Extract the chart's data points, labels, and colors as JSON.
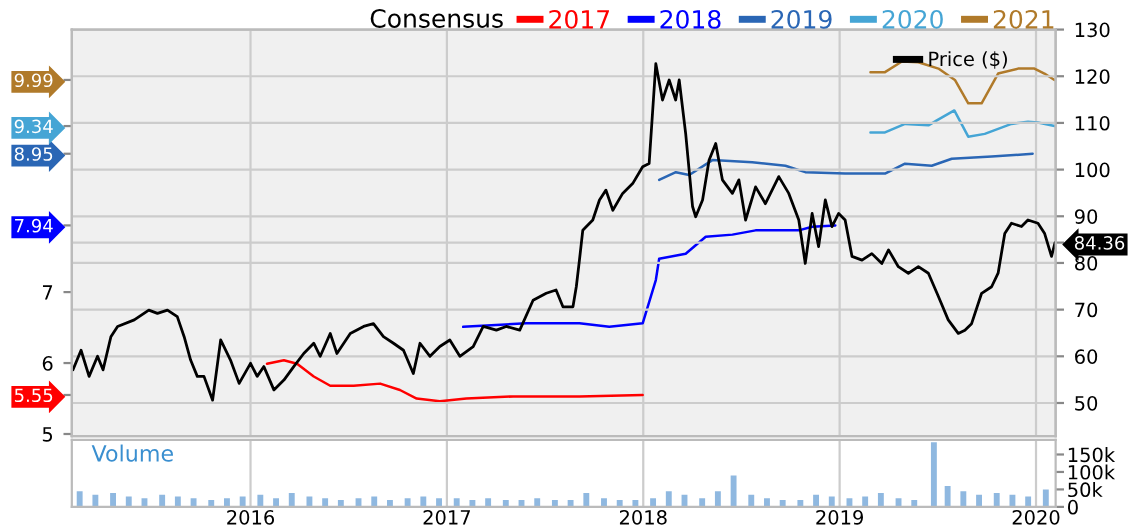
{
  "chart_data": [
    {
      "type": "line",
      "legend_title": "Consensus",
      "legend": "top",
      "grid": true,
      "tick_labels": "y",
      "xlim": [
        2015.09,
        2020.1
      ],
      "xticks": [
        2016,
        2017,
        2018,
        2019,
        2020
      ],
      "ylim": [
        4.97,
        10.7
      ],
      "yticks": [
        5,
        6,
        7,
        {
          "value": 5.55,
          "label": "5.55"
        },
        {
          "value": 7.94,
          "label": "7.94"
        },
        {
          "value": 8.95,
          "label": "8.95"
        },
        {
          "value": 9.34,
          "label": "9.34"
        },
        {
          "value": 9.99,
          "label": "9.99"
        }
      ],
      "y2lim": [
        42.9,
        130
      ],
      "y2ticks": [
        50,
        60,
        70,
        80,
        90,
        100,
        110,
        120,
        130,
        {
          "value": 84.36,
          "label": "84.36"
        }
      ],
      "series": [
        {
          "name": "2017",
          "color": "#ff0000",
          "x": [
            2016.084,
            2016.17,
            2016.237,
            2016.322,
            2016.406,
            2016.525,
            2016.66,
            2016.761,
            2016.846,
            2016.964,
            2017.099,
            2017.337,
            2017.675,
            2017.997
          ],
          "values": [
            5.99,
            6.04,
            5.99,
            5.81,
            5.68,
            5.68,
            5.71,
            5.62,
            5.5,
            5.46,
            5.5,
            5.53,
            5.53,
            5.55
          ]
        },
        {
          "name": "2018",
          "color": "#0000ff",
          "x": [
            2017.083,
            2017.404,
            2017.675,
            2017.827,
            2017.997,
            2018.064,
            2018.081,
            2018.216,
            2018.318,
            2018.454,
            2018.572,
            2018.792,
            2018.86,
            2018.978
          ],
          "values": [
            6.51,
            6.56,
            6.56,
            6.51,
            6.56,
            7.17,
            7.47,
            7.54,
            7.78,
            7.81,
            7.87,
            7.87,
            7.92,
            7.94
          ]
        },
        {
          "name": "2019",
          "color": "#2a66b5",
          "x": [
            2018.081,
            2018.166,
            2018.234,
            2018.352,
            2018.555,
            2018.724,
            2018.825,
            2019.028,
            2019.231,
            2019.333,
            2019.469,
            2019.571,
            2019.774,
            2019.983
          ],
          "values": [
            8.58,
            8.69,
            8.65,
            8.86,
            8.83,
            8.78,
            8.69,
            8.67,
            8.67,
            8.81,
            8.78,
            8.88,
            8.91,
            8.95
          ]
        },
        {
          "name": "2020",
          "color": "#45a5d5",
          "x": [
            2019.157,
            2019.231,
            2019.333,
            2019.452,
            2019.495,
            2019.584,
            2019.655,
            2019.739,
            2019.875,
            2019.959,
            2020.01,
            2020.094
          ],
          "values": [
            9.25,
            9.25,
            9.37,
            9.35,
            9.42,
            9.56,
            9.19,
            9.23,
            9.37,
            9.4,
            9.39,
            9.34
          ]
        },
        {
          "name": "2021",
          "color": "#b07a2a",
          "x": [
            2019.157,
            2019.231,
            2019.317,
            2019.401,
            2019.503,
            2019.587,
            2019.655,
            2019.723,
            2019.807,
            2019.909,
            2019.992,
            2020.043,
            2020.094
          ],
          "values": [
            10.1,
            10.1,
            10.25,
            10.24,
            10.15,
            9.99,
            9.66,
            9.66,
            10.08,
            10.15,
            10.15,
            10.08,
            9.99
          ]
        },
        {
          "name": "Price ($)",
          "color": "#000000",
          "axis": "y2",
          "x": [
            2015.096,
            2015.137,
            2015.178,
            2015.221,
            2015.249,
            2015.289,
            2015.323,
            2015.408,
            2015.482,
            2015.526,
            2015.577,
            2015.627,
            2015.662,
            2015.695,
            2015.729,
            2015.763,
            2015.807,
            2015.848,
            2015.898,
            2015.942,
            2016.0,
            2016.034,
            2016.068,
            2016.119,
            2016.17,
            2016.22,
            2016.271,
            2016.322,
            2016.355,
            2016.406,
            2016.44,
            2016.508,
            2016.576,
            2016.626,
            2016.677,
            2016.728,
            2016.779,
            2016.829,
            2016.863,
            2016.914,
            2016.964,
            2017.015,
            2017.066,
            2017.134,
            2017.185,
            2017.252,
            2017.302,
            2017.371,
            2017.439,
            2017.506,
            2017.556,
            2017.591,
            2017.642,
            2017.659,
            2017.675,
            2017.692,
            2017.743,
            2017.777,
            2017.81,
            2017.845,
            2017.895,
            2017.946,
            2017.997,
            2018.03,
            2018.064,
            2018.098,
            2018.132,
            2018.165,
            2018.183,
            2018.216,
            2018.251,
            2018.267,
            2018.302,
            2018.335,
            2018.369,
            2018.403,
            2018.454,
            2018.487,
            2018.521,
            2018.572,
            2018.622,
            2018.69,
            2018.741,
            2018.792,
            2018.825,
            2018.86,
            2018.893,
            2018.927,
            2018.961,
            2018.995,
            2019.028,
            2019.063,
            2019.114,
            2019.164,
            2019.215,
            2019.249,
            2019.299,
            2019.35,
            2019.401,
            2019.452,
            2019.503,
            2019.553,
            2019.604,
            2019.638,
            2019.672,
            2019.723,
            2019.774,
            2019.807,
            2019.841,
            2019.875,
            2019.926,
            2019.959,
            2020.01,
            2020.044,
            2020.079,
            2020.097
          ],
          "values": [
            57.1,
            61.3,
            55.7,
            60.0,
            57.1,
            64.2,
            66.4,
            67.8,
            69.9,
            69.2,
            69.9,
            68.5,
            64.2,
            59.2,
            55.7,
            55.7,
            50.6,
            63.5,
            59.2,
            54.2,
            58.5,
            55.7,
            57.8,
            52.8,
            54.9,
            57.8,
            60.6,
            62.8,
            60.0,
            64.9,
            60.6,
            64.9,
            66.4,
            67.0,
            64.2,
            62.8,
            61.3,
            56.3,
            62.8,
            60.0,
            62.1,
            63.5,
            60.0,
            62.1,
            66.4,
            65.6,
            66.4,
            65.6,
            72.0,
            73.5,
            74.2,
            70.6,
            70.6,
            74.9,
            80.6,
            87.0,
            89.2,
            93.5,
            95.6,
            91.3,
            94.9,
            97.0,
            100.6,
            101.3,
            122.7,
            114.9,
            119.2,
            114.9,
            119.2,
            107.7,
            92.1,
            89.9,
            93.5,
            102.0,
            105.6,
            97.8,
            94.9,
            97.8,
            89.2,
            96.3,
            92.7,
            98.5,
            94.9,
            89.2,
            79.9,
            90.6,
            83.5,
            93.5,
            87.8,
            90.6,
            89.2,
            81.4,
            80.6,
            82.0,
            79.9,
            82.8,
            79.2,
            77.8,
            79.2,
            77.8,
            72.8,
            67.8,
            64.9,
            65.6,
            67.0,
            73.5,
            74.9,
            77.8,
            86.3,
            88.5,
            87.8,
            89.2,
            88.5,
            86.3,
            81.4,
            84.36
          ]
        }
      ]
    },
    {
      "type": "bar",
      "title": "Volume",
      "color": "#8fb8e0",
      "grid": "x",
      "xlim": [
        2015.09,
        2020.1
      ],
      "xticks": [
        2016,
        2017,
        2018,
        2019,
        2020
      ],
      "ylim": [
        0,
        192000
      ],
      "yticks": [
        {
          "value": 0,
          "label": "0"
        },
        {
          "value": 50000,
          "label": "50k"
        },
        {
          "value": 100000,
          "label": "100k"
        },
        {
          "value": 150000,
          "label": "150k"
        }
      ],
      "x": [
        2015.13,
        2015.21,
        2015.3,
        2015.38,
        2015.46,
        2015.55,
        2015.63,
        2015.71,
        2015.8,
        2015.88,
        2015.96,
        2016.05,
        2016.13,
        2016.21,
        2016.3,
        2016.38,
        2016.46,
        2016.55,
        2016.63,
        2016.71,
        2016.8,
        2016.88,
        2016.96,
        2017.05,
        2017.13,
        2017.21,
        2017.3,
        2017.38,
        2017.46,
        2017.55,
        2017.63,
        2017.71,
        2017.8,
        2017.88,
        2017.96,
        2018.05,
        2018.13,
        2018.21,
        2018.3,
        2018.38,
        2018.46,
        2018.55,
        2018.63,
        2018.71,
        2018.8,
        2018.88,
        2018.96,
        2019.05,
        2019.13,
        2019.21,
        2019.3,
        2019.38,
        2019.48,
        2019.55,
        2019.63,
        2019.71,
        2019.8,
        2019.88,
        2019.96,
        2020.05
      ],
      "values": [
        45000,
        35000,
        40000,
        30000,
        25000,
        35000,
        30000,
        25000,
        20000,
        25000,
        30000,
        35000,
        25000,
        40000,
        30000,
        25000,
        20000,
        25000,
        30000,
        20000,
        25000,
        30000,
        25000,
        25000,
        20000,
        25000,
        20000,
        20000,
        25000,
        20000,
        20000,
        40000,
        25000,
        20000,
        20000,
        25000,
        45000,
        35000,
        25000,
        45000,
        90000,
        35000,
        25000,
        20000,
        20000,
        35000,
        30000,
        25000,
        30000,
        40000,
        25000,
        20000,
        185000,
        60000,
        45000,
        35000,
        40000,
        35000,
        30000,
        50000
      ]
    }
  ]
}
